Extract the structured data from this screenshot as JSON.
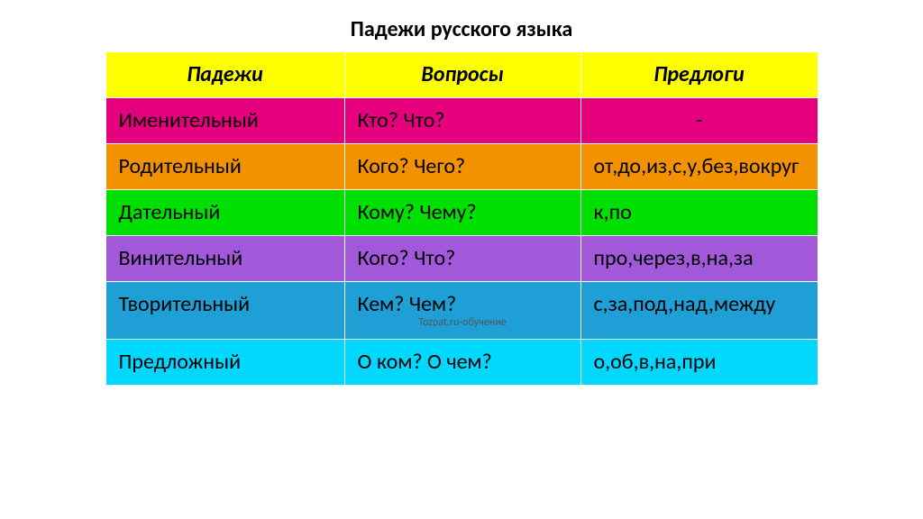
{
  "title": "Падежи русского языка",
  "attribution": "Tozpat.ru-обучение",
  "headers": {
    "c1": "Падежи",
    "c2": "Вопросы",
    "c3": "Предлоги"
  },
  "colors": {
    "header_bg": "#ffff00",
    "row1_bg": "#e6007e",
    "row2_bg": "#f39200",
    "row3_bg": "#00e000",
    "row4_bg": "#a259d9",
    "row5_bg": "#1e9fd6",
    "row6_bg": "#00d8ff",
    "border": "#ffffff"
  },
  "rows": [
    {
      "case": "Именительный",
      "questions": "Кто? Что?",
      "prepositions": "-"
    },
    {
      "case": "Родительный",
      "questions": "Кого? Чего?",
      "prepositions": "от,до,из,с,у,без,вокруг"
    },
    {
      "case": "Дательный",
      "questions": "Кому? Чему?",
      "prepositions": "к,по"
    },
    {
      "case": "Винительный",
      "questions": "Кого? Что?",
      "prepositions": "про,через,в,на,за"
    },
    {
      "case": "Творительный",
      "questions": "Кем? Чем?",
      "prepositions": "с,за,под,над,между"
    },
    {
      "case": "Предложный",
      "questions": "О ком? О чем?",
      "prepositions": "о,об,в,на,при"
    }
  ]
}
